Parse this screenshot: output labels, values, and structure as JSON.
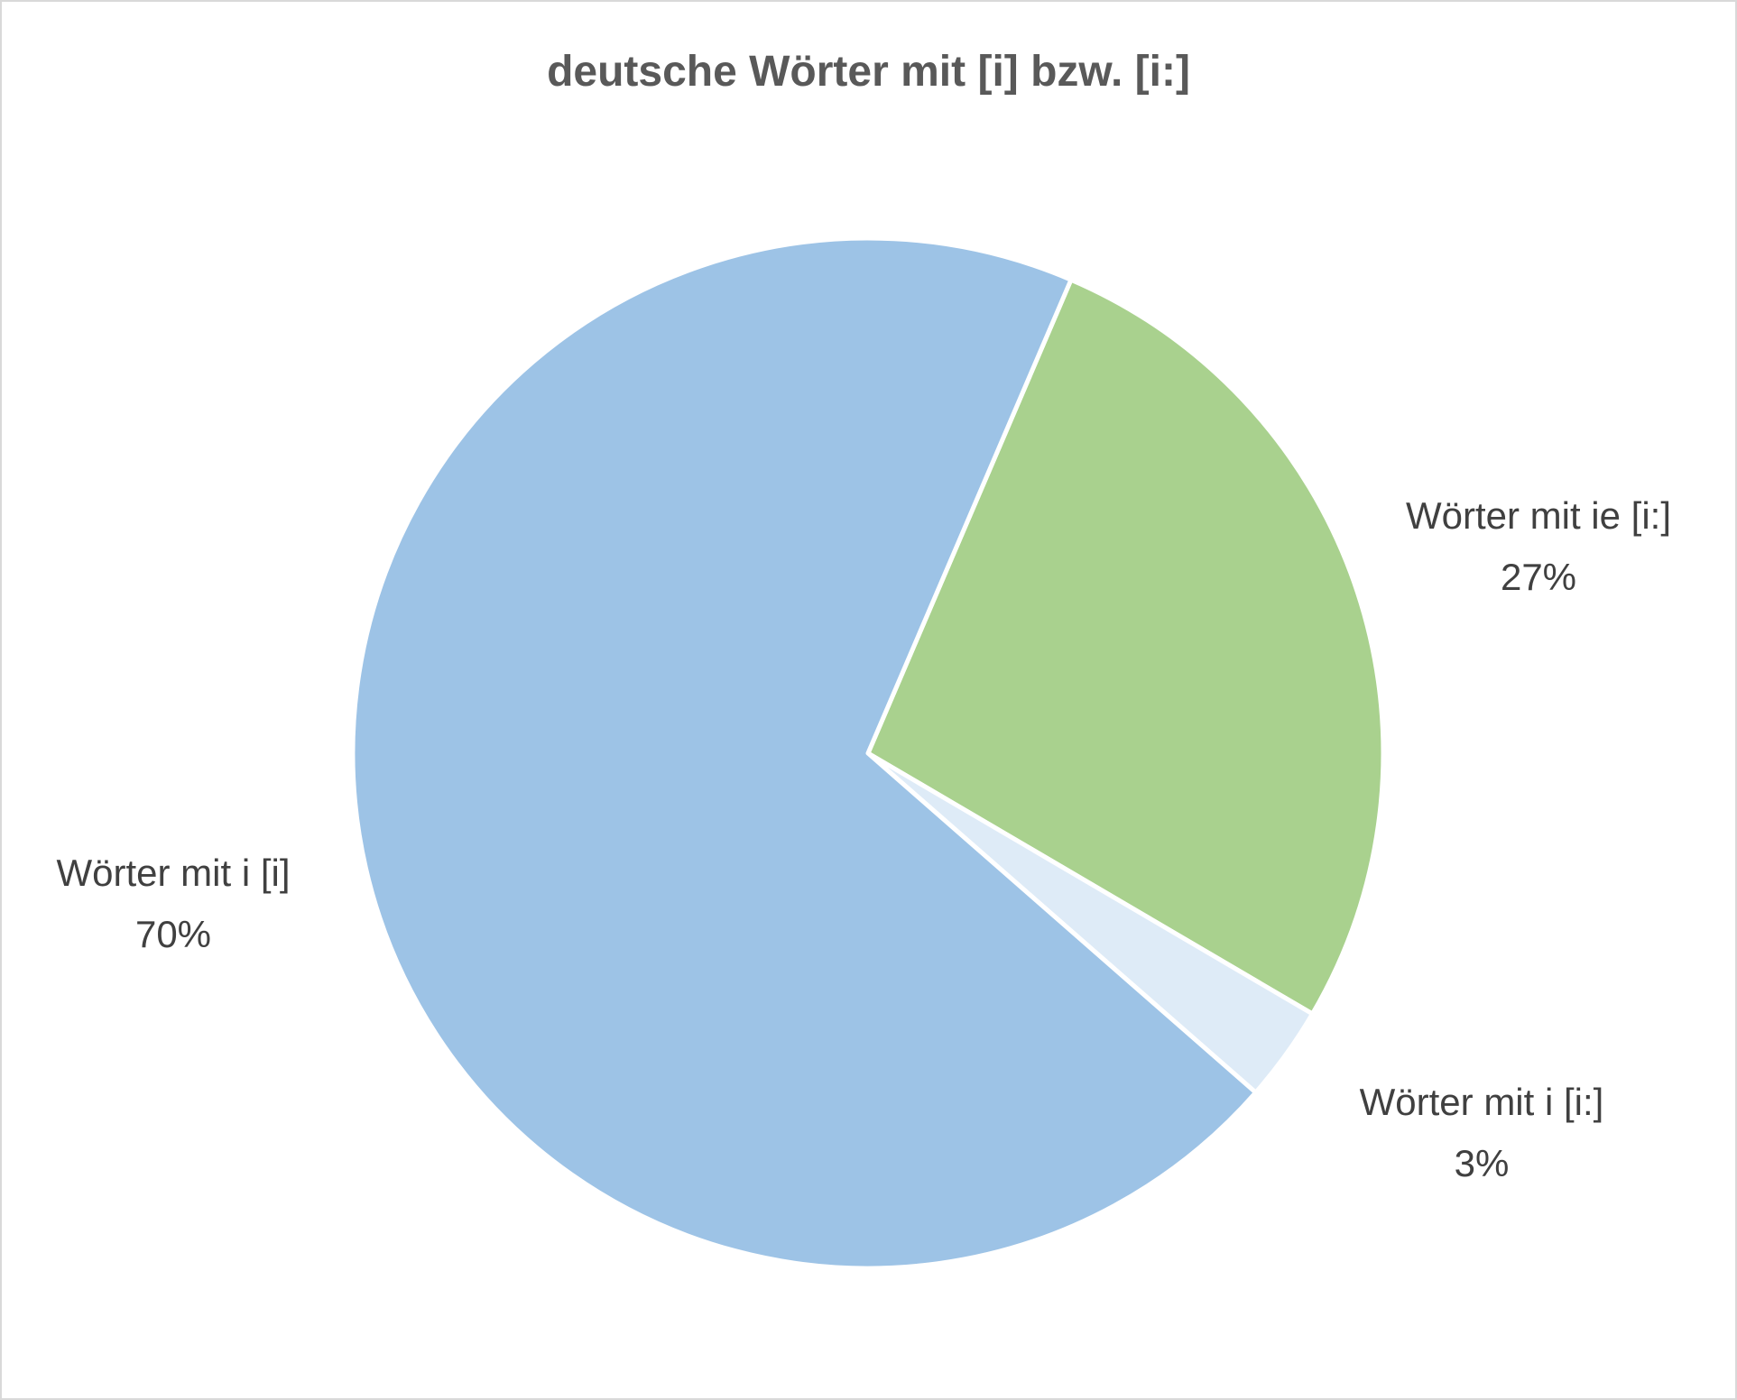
{
  "chart_data": {
    "type": "pie",
    "title": "deutsche Wörter mit [i] bzw. [i:]",
    "categories": [
      "Wörter mit ie [i:]",
      "Wörter mit i [i:]",
      "Wörter mit i [i]"
    ],
    "values": [
      27,
      3,
      70
    ],
    "value_labels": [
      "27%",
      "3%",
      "70%"
    ],
    "colors": [
      "#a9d18e",
      "#deebf7",
      "#9dc3e6"
    ]
  }
}
